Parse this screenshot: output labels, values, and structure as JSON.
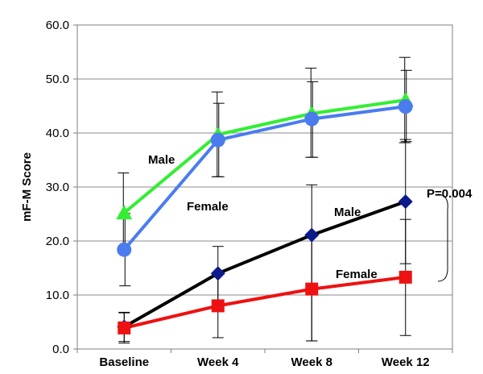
{
  "chart_data": {
    "type": "line",
    "title": "",
    "xlabel": "",
    "ylabel": "mF-M Score",
    "categories": [
      "Baseline",
      "Week 4",
      "Week 8",
      "Week 12"
    ],
    "ylim": [
      0,
      60
    ],
    "yticks": [
      "0.0",
      "10.0",
      "20.0",
      "30.0",
      "40.0",
      "50.0",
      "60.0"
    ],
    "grid": true,
    "legend": "none",
    "series": [
      {
        "color": "#33ee33",
        "marker": "triangle",
        "values": [
          25.2,
          39.7,
          43.6,
          46.1
        ],
        "err_low": [
          17.8,
          31.9,
          35.5,
          38.2
        ],
        "err_high": [
          32.6,
          47.6,
          52.0,
          54.0
        ]
      },
      {
        "color": "#4a7cf0",
        "marker": "circle",
        "values": [
          18.4,
          38.7,
          42.6,
          44.9
        ],
        "err_low": [
          11.7,
          31.9,
          35.5,
          38.4
        ],
        "err_high": [
          25.1,
          45.5,
          49.5,
          51.6
        ]
      },
      {
        "color": "#000000",
        "marker": "diamond",
        "marker_color": "#0d1a8a",
        "values": [
          4.1,
          14.0,
          21.1,
          27.3
        ],
        "err_low": [
          1.4,
          9.0,
          1.5,
          15.8
        ],
        "err_high": [
          6.8,
          19.0,
          30.4,
          38.8
        ]
      },
      {
        "color": "#ee1111",
        "marker": "square",
        "values": [
          3.9,
          8.0,
          11.1,
          13.3
        ],
        "err_low": [
          1.1,
          2.1,
          1.5,
          2.5
        ],
        "err_high": [
          6.7,
          14.1,
          21.1,
          24.0
        ]
      }
    ],
    "annotations": [
      {
        "id": "male-upper",
        "text": "Male"
      },
      {
        "id": "female-upper",
        "text": "Female"
      },
      {
        "id": "male-lower",
        "text": "Male"
      },
      {
        "id": "female-lower",
        "text": "Female"
      },
      {
        "id": "p-value",
        "text": "P=0.004"
      }
    ]
  }
}
